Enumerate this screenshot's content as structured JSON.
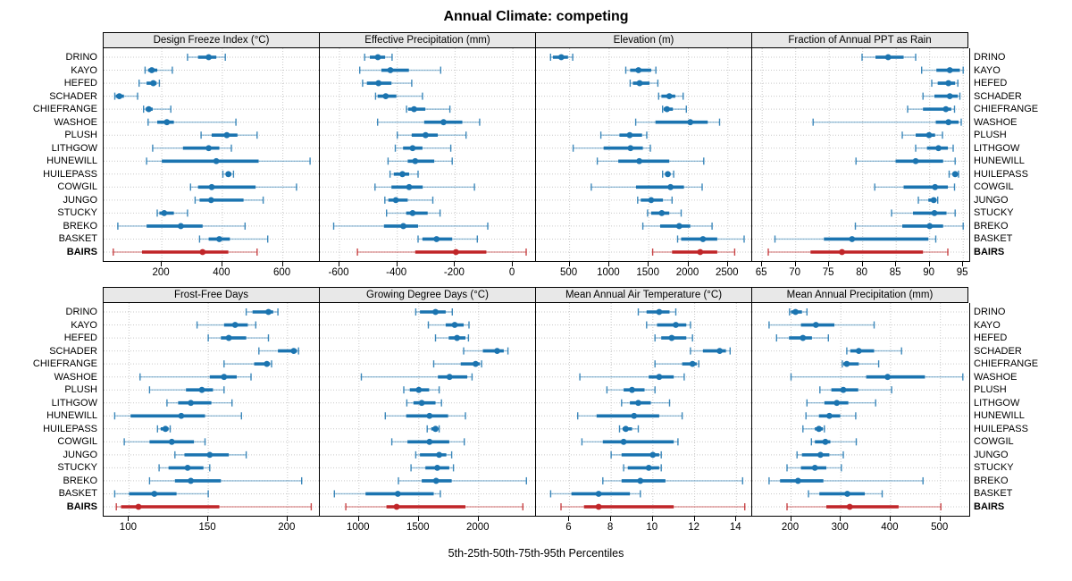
{
  "title": "Annual Climate: competing",
  "footer": "5th-25th-50th-75th-95th Percentiles",
  "stations": [
    "DRINO",
    "KAYO",
    "HEFED",
    "SCHADER",
    "CHIEFRANGE",
    "WASHOE",
    "PLUSH",
    "LITHGOW",
    "HUNEWILL",
    "HUILEPASS",
    "COWGIL",
    "JUNGO",
    "STUCKY",
    "BREKO",
    "BASKET",
    "BAIRS"
  ],
  "highlight_station": "BAIRS",
  "colors": {
    "series": "#1B74B0",
    "highlight": "#C02528",
    "grid": "#C9C9C9",
    "strip_bg": "#E8E8E8",
    "border": "#000000"
  },
  "chart_data": {
    "type": "dotplot-percentiles",
    "percentiles": [
      5,
      25,
      50,
      75,
      95
    ],
    "layout": "2 rows x 4 columns, shared station axis, grid dotted",
    "panels": [
      {
        "title": "Design Freeze Index (°C)",
        "domain": [
          8,
          725
        ],
        "ticks": [
          200,
          400,
          600
        ],
        "tick_labels": [
          "200",
          "400",
          "600"
        ],
        "values": [
          [
            285,
            320,
            355,
            380,
            410
          ],
          [
            145,
            155,
            167,
            185,
            235
          ],
          [
            125,
            150,
            172,
            183,
            192
          ],
          [
            45,
            48,
            60,
            75,
            120
          ],
          [
            140,
            147,
            157,
            170,
            230
          ],
          [
            155,
            185,
            217,
            240,
            445
          ],
          [
            330,
            365,
            415,
            450,
            515
          ],
          [
            170,
            270,
            355,
            390,
            430
          ],
          [
            150,
            200,
            380,
            520,
            690
          ],
          [
            402,
            412,
            420,
            430,
            437
          ],
          [
            295,
            320,
            365,
            510,
            645
          ],
          [
            310,
            325,
            363,
            470,
            535
          ],
          [
            185,
            192,
            208,
            240,
            285
          ],
          [
            55,
            150,
            263,
            335,
            475
          ],
          [
            325,
            355,
            390,
            425,
            550
          ],
          [
            40,
            135,
            335,
            420,
            515
          ]
        ]
      },
      {
        "title": "Effective Precipitation (mm)",
        "domain": [
          -668,
          83
        ],
        "ticks": [
          -600,
          -400,
          -200,
          0
        ],
        "tick_labels": [
          "-600",
          "-400",
          "-200",
          "0"
        ],
        "values": [
          [
            -513,
            -495,
            -467,
            -442,
            -418
          ],
          [
            -530,
            -455,
            -424,
            -360,
            -250
          ],
          [
            -520,
            -505,
            -465,
            -420,
            -350
          ],
          [
            -475,
            -468,
            -440,
            -403,
            -313
          ],
          [
            -368,
            -362,
            -342,
            -303,
            -218
          ],
          [
            -468,
            -307,
            -240,
            -175,
            -115
          ],
          [
            -400,
            -350,
            -302,
            -260,
            -162
          ],
          [
            -407,
            -380,
            -347,
            -313,
            -215
          ],
          [
            -432,
            -364,
            -338,
            -272,
            -210
          ],
          [
            -425,
            -412,
            -382,
            -359,
            -328
          ],
          [
            -477,
            -420,
            -359,
            -312,
            -133
          ],
          [
            -443,
            -431,
            -405,
            -364,
            -277
          ],
          [
            -437,
            -369,
            -347,
            -295,
            -252
          ],
          [
            -620,
            -446,
            -379,
            -328,
            -87
          ],
          [
            -328,
            -313,
            -264,
            -210,
            -123
          ],
          [
            -538,
            -338,
            -197,
            -92,
            46
          ]
        ]
      },
      {
        "title": "Elevation (m)",
        "domain": [
          76,
          2818
        ],
        "ticks": [
          500,
          1000,
          1500,
          2000,
          2500
        ],
        "tick_labels": [
          "500",
          "1000",
          "1500",
          "2000",
          "2500"
        ],
        "values": [
          [
            260,
            290,
            395,
            480,
            540
          ],
          [
            1210,
            1265,
            1370,
            1530,
            1590
          ],
          [
            1265,
            1300,
            1385,
            1510,
            1615
          ],
          [
            1625,
            1660,
            1760,
            1835,
            1935
          ],
          [
            1675,
            1690,
            1730,
            1805,
            1975
          ],
          [
            1335,
            1585,
            2025,
            2245,
            2395
          ],
          [
            895,
            1130,
            1260,
            1415,
            1475
          ],
          [
            545,
            930,
            1270,
            1425,
            1520
          ],
          [
            850,
            1115,
            1380,
            1760,
            2195
          ],
          [
            1675,
            1710,
            1740,
            1775,
            1815
          ],
          [
            775,
            1340,
            1775,
            1945,
            2175
          ],
          [
            1360,
            1400,
            1530,
            1680,
            1795
          ],
          [
            1485,
            1530,
            1665,
            1760,
            1910
          ],
          [
            1425,
            1645,
            1885,
            2025,
            2300
          ],
          [
            1865,
            1910,
            2185,
            2365,
            2705
          ],
          [
            1550,
            1795,
            2150,
            2365,
            2585
          ]
        ]
      },
      {
        "title": "Fraction of Annual PPT as Rain",
        "domain": [
          63.5,
          95.9
        ],
        "ticks": [
          65,
          70,
          75,
          80,
          85,
          90,
          95
        ],
        "tick_labels": [
          "65",
          "70",
          "75",
          "80",
          "85",
          "90",
          "95"
        ],
        "values": [
          [
            79.9,
            81.9,
            83.8,
            86.1,
            87.9
          ],
          [
            88.8,
            91,
            93,
            94.5,
            95
          ],
          [
            90.3,
            91.2,
            92.8,
            93.8,
            94.2
          ],
          [
            89,
            90.7,
            93,
            94.2,
            94.5
          ],
          [
            86.7,
            89,
            92.4,
            93.2,
            93.7
          ],
          [
            72.6,
            90.9,
            92.8,
            94.3,
            94.7
          ],
          [
            85.9,
            87.9,
            89.9,
            90.8,
            91.9
          ],
          [
            87.9,
            89.6,
            91.3,
            92.7,
            93.5
          ],
          [
            79,
            84.9,
            87.9,
            92,
            93.8
          ],
          [
            92.9,
            93.4,
            93.8,
            94.1,
            94.3
          ],
          [
            81.8,
            86.1,
            90.8,
            92.7,
            93.7
          ],
          [
            88.3,
            89.8,
            90.6,
            91,
            91.2
          ],
          [
            84.3,
            87.5,
            90.7,
            92.5,
            93.8
          ],
          [
            78.9,
            85.9,
            90,
            92,
            95
          ],
          [
            66.9,
            74.2,
            78.4,
            89.8,
            90.9
          ],
          [
            65.9,
            72.2,
            76.9,
            89,
            92.7
          ]
        ]
      },
      {
        "title": "Frost-Free Days",
        "domain": [
          84,
          221
        ],
        "ticks": [
          100,
          150,
          200
        ],
        "tick_labels": [
          "100",
          "150",
          "200"
        ],
        "values": [
          [
            174,
            178,
            188,
            191,
            194
          ],
          [
            143,
            160,
            167,
            175,
            180
          ],
          [
            150,
            158,
            163,
            174,
            188
          ],
          [
            182,
            194,
            204,
            206,
            207
          ],
          [
            160,
            179,
            187,
            189,
            190
          ],
          [
            107,
            151,
            160,
            168,
            177
          ],
          [
            113,
            136,
            146,
            153,
            160
          ],
          [
            124,
            131,
            139,
            152,
            165
          ],
          [
            91,
            101,
            133,
            148,
            171
          ],
          [
            118,
            120,
            123,
            125,
            126
          ],
          [
            97,
            113,
            127,
            141,
            148
          ],
          [
            129,
            135,
            151,
            163,
            174
          ],
          [
            119,
            125,
            137,
            147,
            151
          ],
          [
            113,
            129,
            139,
            158,
            209
          ],
          [
            91,
            100,
            116,
            130,
            150
          ],
          [
            92,
            95,
            106,
            157,
            215
          ]
        ]
      },
      {
        "title": "Growing Degree Days (°C)",
        "domain": [
          673,
          2487
        ],
        "ticks": [
          1000,
          1500,
          2000
        ],
        "tick_labels": [
          "1000",
          "1500",
          "2000"
        ],
        "values": [
          [
            1475,
            1510,
            1640,
            1725,
            1780
          ],
          [
            1580,
            1725,
            1800,
            1875,
            1920
          ],
          [
            1640,
            1750,
            1820,
            1890,
            1915
          ],
          [
            1875,
            2035,
            2155,
            2210,
            2245
          ],
          [
            1625,
            1850,
            1975,
            2010,
            2025
          ],
          [
            1020,
            1660,
            1757,
            1905,
            1945
          ],
          [
            1375,
            1425,
            1500,
            1587,
            1670
          ],
          [
            1400,
            1455,
            1525,
            1640,
            1690
          ],
          [
            1220,
            1395,
            1590,
            1745,
            1890
          ],
          [
            1570,
            1605,
            1640,
            1660,
            1670
          ],
          [
            1275,
            1405,
            1590,
            1755,
            1880
          ],
          [
            1475,
            1510,
            1670,
            1730,
            1775
          ],
          [
            1435,
            1555,
            1655,
            1755,
            1790
          ],
          [
            1330,
            1525,
            1645,
            1775,
            2400
          ],
          [
            795,
            1055,
            1325,
            1625,
            1680
          ],
          [
            890,
            1230,
            1315,
            1890,
            2370
          ]
        ]
      },
      {
        "title": "Mean Annual Air Temperature (°C)",
        "domain": [
          4.4,
          14.8
        ],
        "ticks": [
          6,
          8,
          10,
          12,
          14
        ],
        "tick_labels": [
          "6",
          "8",
          "10",
          "12",
          "14"
        ],
        "values": [
          [
            9.3,
            9.7,
            10.3,
            10.8,
            11.1
          ],
          [
            9.7,
            10.2,
            11.1,
            11.6,
            11.8
          ],
          [
            10.1,
            10.4,
            10.9,
            11.6,
            11.9
          ],
          [
            11.8,
            12.4,
            13.2,
            13.5,
            13.7
          ],
          [
            10.1,
            11.4,
            11.9,
            12.1,
            12.2
          ],
          [
            6.5,
            9.8,
            10.3,
            11.0,
            11.5
          ],
          [
            7.8,
            8.6,
            9.0,
            9.6,
            10.1
          ],
          [
            8.5,
            8.9,
            9.3,
            9.9,
            10.8
          ],
          [
            6.4,
            7.3,
            9.1,
            10.3,
            11.4
          ],
          [
            8.4,
            8.55,
            8.7,
            9.0,
            9.3
          ],
          [
            6.6,
            7.6,
            8.6,
            11.0,
            11.2
          ],
          [
            8.0,
            8.5,
            10.0,
            10.3,
            10.4
          ],
          [
            8.6,
            8.8,
            9.8,
            10.3,
            10.4
          ],
          [
            7.6,
            8.5,
            9.4,
            10.6,
            14.3
          ],
          [
            5.1,
            6.1,
            7.4,
            8.9,
            9.4
          ],
          [
            5.6,
            6.7,
            7.4,
            11.0,
            14.4
          ]
        ]
      },
      {
        "title": "Mean Annual Precipitation (mm)",
        "domain": [
          122,
          558
        ],
        "ticks": [
          200,
          300,
          400,
          500
        ],
        "tick_labels": [
          "200",
          "300",
          "400",
          "500"
        ],
        "values": [
          [
            197,
            200,
            209,
            222,
            232
          ],
          [
            156,
            220,
            250,
            287,
            367
          ],
          [
            171,
            196,
            224,
            242,
            275
          ],
          [
            312,
            319,
            336,
            367,
            422
          ],
          [
            303,
            305,
            312,
            336,
            376
          ],
          [
            200,
            351,
            394,
            469,
            545
          ],
          [
            258,
            281,
            305,
            335,
            402
          ],
          [
            232,
            267,
            292,
            315,
            370
          ],
          [
            230,
            256,
            277,
            299,
            330
          ],
          [
            224,
            248,
            256,
            264,
            267
          ],
          [
            241,
            248,
            269,
            279,
            331
          ],
          [
            212,
            222,
            259,
            277,
            305
          ],
          [
            192,
            220,
            248,
            271,
            301
          ],
          [
            156,
            178,
            214,
            265,
            465
          ],
          [
            235,
            257,
            313,
            348,
            383
          ],
          [
            192,
            271,
            318,
            416,
            501
          ]
        ]
      }
    ]
  }
}
